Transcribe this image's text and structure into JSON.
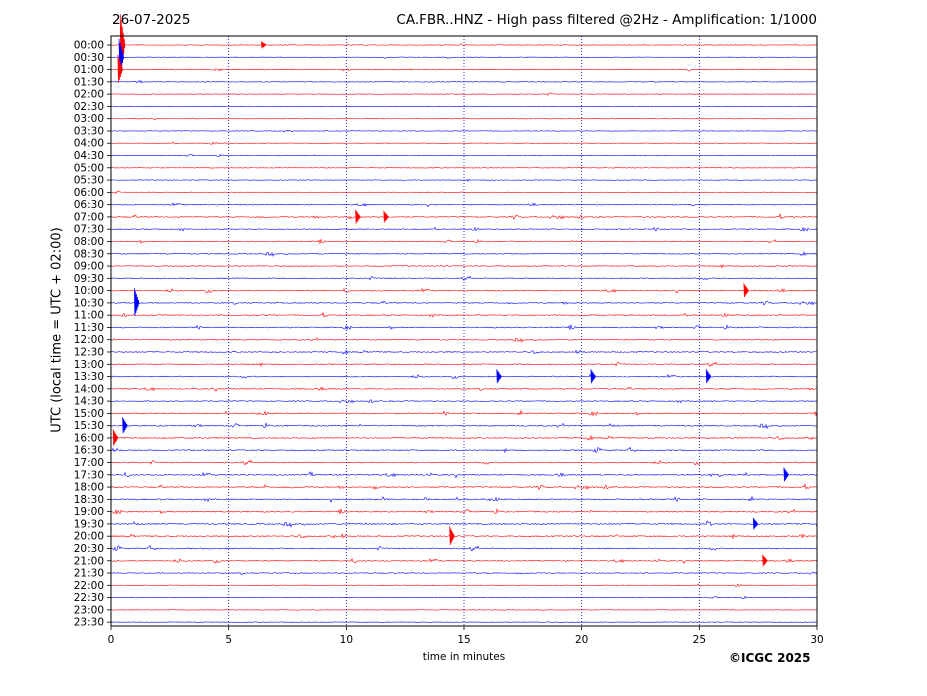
{
  "header": {
    "date": "26-07-2025",
    "title": "CA.FBR..HNZ - High pass filtered @2Hz - Amplification: 1/1000"
  },
  "footer": {
    "copyright": "©ICGC 2025"
  },
  "chart_data": {
    "type": "line",
    "subtype": "helicorder",
    "title": "CA.FBR..HNZ - High pass filtered @2Hz - Amplification: 1/1000",
    "xlabel": "time in minutes",
    "ylabel": "UTC (local time = UTC + 02:00)",
    "xlim": [
      0,
      30
    ],
    "x_ticks": [
      0,
      5,
      10,
      15,
      20,
      25,
      30
    ],
    "y_ticks": [
      "00:00",
      "00:30",
      "01:00",
      "01:30",
      "02:00",
      "02:30",
      "03:00",
      "03:30",
      "04:00",
      "04:30",
      "05:00",
      "05:30",
      "06:00",
      "06:30",
      "07:00",
      "07:30",
      "08:00",
      "08:30",
      "09:00",
      "09:30",
      "10:00",
      "10:30",
      "11:00",
      "11:30",
      "12:00",
      "12:30",
      "13:00",
      "13:30",
      "14:00",
      "14:30",
      "15:00",
      "15:30",
      "16:00",
      "16:30",
      "17:00",
      "17:30",
      "18:00",
      "18:30",
      "19:00",
      "19:30",
      "20:00",
      "20:30",
      "21:00",
      "21:30",
      "22:00",
      "22:30",
      "23:00",
      "23:30"
    ],
    "grid": "vertical dotted at every 5 minutes",
    "colors": {
      "even_rows": "#ff0000",
      "odd_rows": "#0000ff",
      "grid": "#0000aa"
    },
    "activity_level": [
      0.2,
      0.2,
      0.3,
      0.2,
      0.1,
      0.1,
      0.1,
      0.1,
      0.1,
      0.1,
      0.1,
      0.1,
      0.15,
      0.5,
      0.8,
      0.6,
      0.5,
      0.6,
      0.6,
      0.6,
      0.7,
      0.7,
      0.7,
      0.7,
      0.6,
      0.7,
      0.7,
      0.7,
      0.7,
      0.6,
      0.8,
      0.9,
      0.9,
      0.8,
      0.8,
      0.9,
      0.9,
      0.9,
      0.9,
      1.0,
      1.0,
      0.8,
      0.8,
      0.5,
      0.2,
      0.1,
      0.1,
      0.1
    ],
    "events": [
      {
        "row": 0,
        "minute": 0.5,
        "amplitude": 2.5
      },
      {
        "row": 0,
        "minute": 6.5,
        "amplitude": 0.3
      },
      {
        "row": 1,
        "minute": 0.45,
        "amplitude": 1.5
      },
      {
        "row": 2,
        "minute": 0.4,
        "amplitude": 1.2
      },
      {
        "row": 14,
        "minute": 10.5,
        "amplitude": 0.6
      },
      {
        "row": 14,
        "minute": 11.7,
        "amplitude": 0.5
      },
      {
        "row": 21,
        "minute": 1.1,
        "amplitude": 1.2
      },
      {
        "row": 20,
        "minute": 27.0,
        "amplitude": 0.6
      },
      {
        "row": 27,
        "minute": 16.5,
        "amplitude": 0.6
      },
      {
        "row": 27,
        "minute": 20.5,
        "amplitude": 0.6
      },
      {
        "row": 27,
        "minute": 25.4,
        "amplitude": 0.6
      },
      {
        "row": 31,
        "minute": 0.6,
        "amplitude": 0.7
      },
      {
        "row": 32,
        "minute": 0.2,
        "amplitude": 0.7
      },
      {
        "row": 35,
        "minute": 28.7,
        "amplitude": 0.6
      },
      {
        "row": 39,
        "minute": 27.4,
        "amplitude": 0.5
      },
      {
        "row": 40,
        "minute": 14.5,
        "amplitude": 0.8
      },
      {
        "row": 42,
        "minute": 27.8,
        "amplitude": 0.5
      }
    ]
  }
}
